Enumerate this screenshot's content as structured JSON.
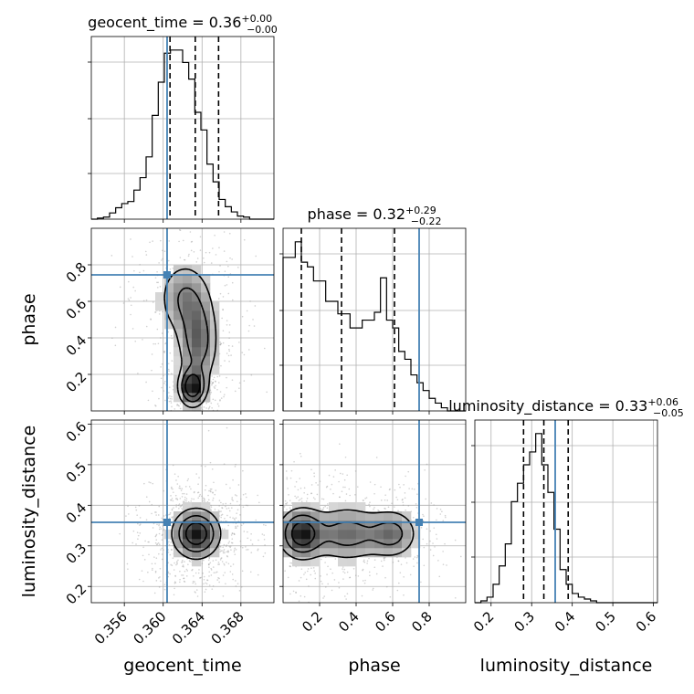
{
  "chart_data": {
    "type": "corner",
    "parameters": [
      "geocent_time",
      "phase",
      "luminosity_distance"
    ],
    "truths": {
      "geocent_time": 0.3604,
      "phase": 0.745,
      "luminosity_distance": 0.358
    },
    "truth_color": "#4682b4",
    "ranges": {
      "geocent_time": [
        0.3526,
        0.3714
      ],
      "phase": [
        0.0,
        1.0
      ],
      "luminosity_distance": [
        0.16,
        0.61
      ]
    },
    "titles": [
      {
        "param": "geocent_time",
        "label": "geocent_time = 0.36",
        "sup": "+0.00",
        "sub": "−0.00"
      },
      {
        "param": "phase",
        "label": "phase = 0.32",
        "sup": "+0.29",
        "sub": "−0.22"
      },
      {
        "param": "luminosity_distance",
        "label": "luminosity_distance = 0.33",
        "sup": "+0.06",
        "sub": "−0.05"
      }
    ],
    "axis_labels": {
      "x": [
        "geocent_time",
        "phase",
        "luminosity_distance"
      ],
      "y": [
        "phase",
        "luminosity_distance"
      ]
    },
    "ticks": {
      "geocent_time": {
        "values": [
          0.356,
          0.36,
          0.364,
          0.368
        ],
        "labels": [
          "0.356",
          "0.360",
          "0.364",
          "0.368"
        ]
      },
      "phase": {
        "values": [
          0.2,
          0.4,
          0.6,
          0.8
        ],
        "labels": [
          "0.2",
          "0.4",
          "0.6",
          "0.8"
        ]
      },
      "luminosity_distance": {
        "values": [
          0.2,
          0.3,
          0.4,
          0.5,
          0.6
        ],
        "labels": [
          "0.2",
          "0.3",
          "0.4",
          "0.5",
          "0.6"
        ]
      }
    },
    "quantiles": {
      "geocent_time": [
        0.3607,
        0.3633,
        0.3657
      ],
      "phase": [
        0.1,
        0.32,
        0.61
      ],
      "luminosity_distance": [
        0.28,
        0.33,
        0.39
      ]
    },
    "marginals": {
      "geocent_time": {
        "edges": [
          0.3526,
          0.3714
        ],
        "counts": [
          0,
          1,
          2,
          6,
          11,
          15,
          17,
          28,
          40,
          60,
          100,
          132,
          160,
          163,
          163,
          151,
          135,
          103,
          86,
          53,
          36,
          19,
          12,
          7,
          3,
          2,
          0,
          0,
          0,
          0
        ]
      },
      "phase": {
        "edges": [
          0.0,
          1.0
        ],
        "counts": [
          98,
          98,
          108,
          95,
          92,
          83,
          83,
          70,
          70,
          62,
          62,
          53,
          53,
          58,
          58,
          63,
          85,
          58,
          53,
          38,
          33,
          23,
          18,
          13,
          8,
          5,
          2,
          0,
          0,
          0
        ]
      },
      "luminosity_distance": {
        "edges": [
          0.16,
          0.61
        ],
        "counts": [
          0,
          1,
          3,
          10,
          20,
          32,
          55,
          65,
          75,
          82,
          92,
          75,
          60,
          40,
          18,
          10,
          5,
          3,
          2,
          1,
          0,
          0,
          0,
          0,
          0,
          0,
          0,
          0,
          0,
          0
        ]
      }
    },
    "joint_modes": {
      "geocent_time_phase": [
        {
          "x": 0.363,
          "y": 0.13,
          "sx": 0.0008,
          "sy": 0.06,
          "w": 1.0
        },
        {
          "x": 0.3636,
          "y": 0.38,
          "sx": 0.0012,
          "sy": 0.14,
          "w": 0.6
        },
        {
          "x": 0.3622,
          "y": 0.62,
          "sx": 0.0016,
          "sy": 0.12,
          "w": 0.45
        }
      ],
      "geocent_time_luminosity_distance": [
        {
          "x": 0.3634,
          "y": 0.33,
          "sx": 0.0014,
          "sy": 0.035,
          "w": 1.0
        }
      ],
      "phase_luminosity_distance": [
        {
          "x": 0.1,
          "y": 0.33,
          "sx": 0.07,
          "sy": 0.035,
          "w": 1.0
        },
        {
          "x": 0.35,
          "y": 0.33,
          "sx": 0.12,
          "sy": 0.04,
          "w": 0.6
        },
        {
          "x": 0.6,
          "y": 0.33,
          "sx": 0.08,
          "sy": 0.035,
          "w": 0.55
        }
      ]
    }
  }
}
